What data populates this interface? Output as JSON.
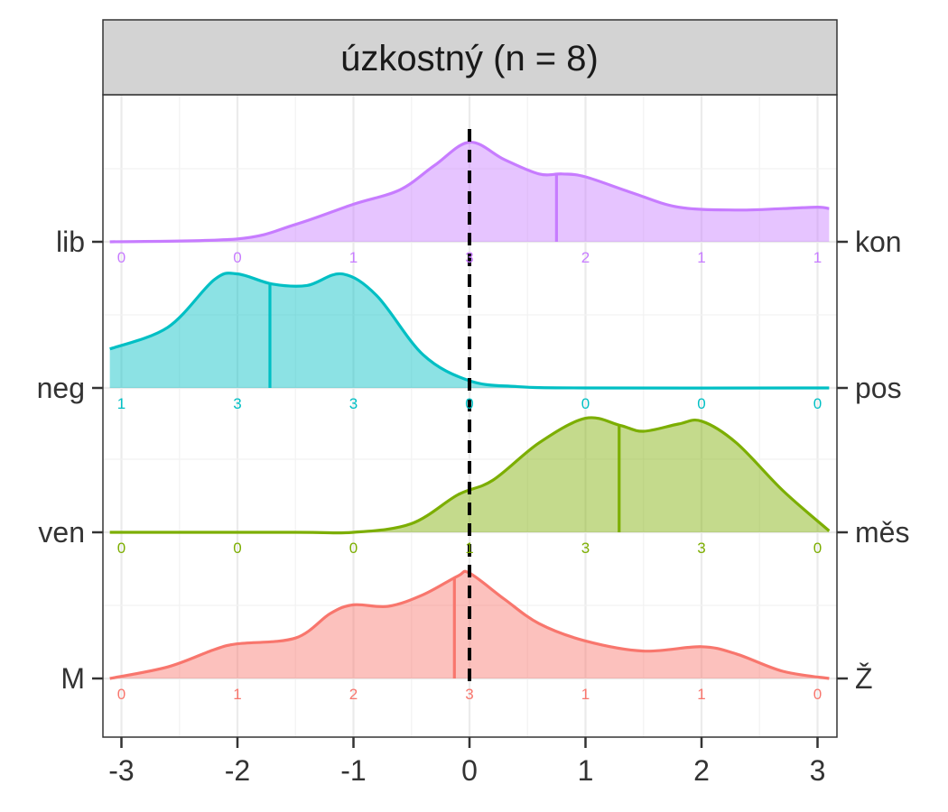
{
  "chart_data": {
    "type": "ridgeline",
    "title": "úzkostný (n = 8)",
    "xlim": [
      -3.1,
      3.1
    ],
    "x_ticks": [
      -3,
      -2,
      -1,
      0,
      1,
      2,
      3
    ],
    "x_tick_labels": [
      "-3",
      "-2",
      "-1",
      "0",
      "1",
      "2",
      "3"
    ],
    "reference_line_x": 0,
    "grid": true,
    "count_positions": [
      -3,
      -2,
      -1,
      0,
      1,
      2,
      3
    ],
    "rows": [
      {
        "left_label": "M",
        "right_label": "Ž",
        "color": "#F8766D",
        "mean": -0.13,
        "counts": [
          "0",
          "1",
          "2",
          "3",
          "1",
          "1",
          "0"
        ],
        "density": [
          [
            -3.1,
            0.0
          ],
          [
            -2.6,
            0.08
          ],
          [
            -2.2,
            0.2
          ],
          [
            -2.0,
            0.24
          ],
          [
            -1.5,
            0.28
          ],
          [
            -1.2,
            0.45
          ],
          [
            -1.0,
            0.51
          ],
          [
            -0.7,
            0.5
          ],
          [
            -0.4,
            0.58
          ],
          [
            -0.1,
            0.71
          ],
          [
            0.0,
            0.73
          ],
          [
            0.3,
            0.55
          ],
          [
            0.6,
            0.38
          ],
          [
            1.0,
            0.26
          ],
          [
            1.5,
            0.19
          ],
          [
            2.0,
            0.22
          ],
          [
            2.3,
            0.17
          ],
          [
            2.7,
            0.05
          ],
          [
            3.1,
            0.0
          ]
        ]
      },
      {
        "left_label": "ven",
        "right_label": "měs",
        "color": "#7CAE00",
        "mean": 1.29,
        "counts": [
          "0",
          "0",
          "0",
          "1",
          "3",
          "3",
          "0"
        ],
        "density": [
          [
            -3.1,
            0.0
          ],
          [
            -1.5,
            0.0
          ],
          [
            -1.0,
            0.0
          ],
          [
            -0.5,
            0.06
          ],
          [
            -0.1,
            0.26
          ],
          [
            0.2,
            0.36
          ],
          [
            0.6,
            0.62
          ],
          [
            1.0,
            0.79
          ],
          [
            1.3,
            0.74
          ],
          [
            1.5,
            0.7
          ],
          [
            1.8,
            0.75
          ],
          [
            2.0,
            0.77
          ],
          [
            2.3,
            0.62
          ],
          [
            2.7,
            0.29
          ],
          [
            3.1,
            0.01
          ]
        ]
      },
      {
        "left_label": "neg",
        "right_label": "pos",
        "color": "#00BFC4",
        "mean": -1.72,
        "counts": [
          "1",
          "3",
          "3",
          "0",
          "0",
          "0",
          "0"
        ],
        "density": [
          [
            -3.1,
            0.27
          ],
          [
            -2.6,
            0.42
          ],
          [
            -2.2,
            0.75
          ],
          [
            -2.0,
            0.79
          ],
          [
            -1.7,
            0.72
          ],
          [
            -1.4,
            0.71
          ],
          [
            -1.1,
            0.79
          ],
          [
            -0.8,
            0.64
          ],
          [
            -0.4,
            0.23
          ],
          [
            0.0,
            0.05
          ],
          [
            0.4,
            0.01
          ],
          [
            1.0,
            0.0
          ],
          [
            3.1,
            0.0
          ]
        ]
      },
      {
        "left_label": "lib",
        "right_label": "kon",
        "color": "#C77CFF",
        "mean": 0.75,
        "counts": [
          "0",
          "0",
          "1",
          "3",
          "2",
          "1",
          "1"
        ],
        "density": [
          [
            -3.1,
            0.0
          ],
          [
            -2.0,
            0.02
          ],
          [
            -1.5,
            0.12
          ],
          [
            -1.0,
            0.26
          ],
          [
            -0.6,
            0.36
          ],
          [
            -0.3,
            0.53
          ],
          [
            0.0,
            0.69
          ],
          [
            0.3,
            0.57
          ],
          [
            0.6,
            0.47
          ],
          [
            0.8,
            0.47
          ],
          [
            1.0,
            0.45
          ],
          [
            1.4,
            0.34
          ],
          [
            1.8,
            0.24
          ],
          [
            2.3,
            0.22
          ],
          [
            2.7,
            0.23
          ],
          [
            3.0,
            0.24
          ],
          [
            3.1,
            0.23
          ]
        ]
      }
    ]
  }
}
